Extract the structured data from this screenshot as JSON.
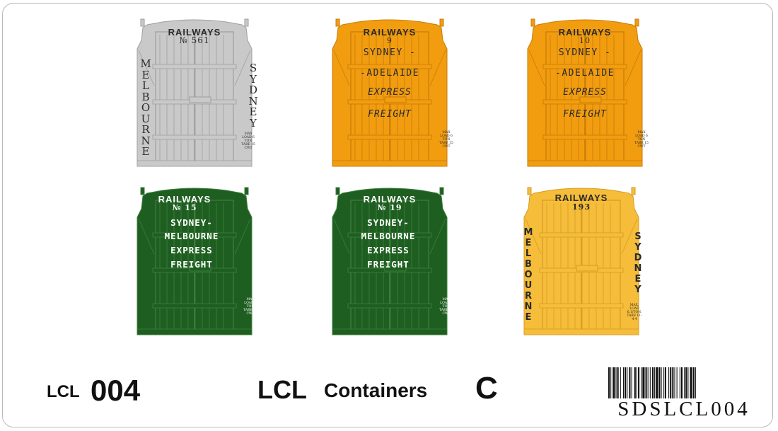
{
  "sheet": {
    "code_prefix": "LCL",
    "code_number": "004",
    "title_lcl": "LCL",
    "title_word": "Containers",
    "title_letter": "C",
    "barcode_text": "SDSLCL004"
  },
  "containers": [
    {
      "colour": "#c9c9c9",
      "line_colour": "#9e9e9e",
      "railways": "RAILWAYS",
      "number": "№ 561",
      "left_vertical": "MELBOURNE",
      "right_vertical": "SYDNEY",
      "small_print": "MAX LOAD 6 TON TARE 15 CWT"
    },
    {
      "colour": "#f29d10",
      "line_colour": "#c67b07",
      "railways": "RAILWAYS",
      "number": "9",
      "lines": [
        "SYDNEY  -",
        "-ADELAIDE",
        "EXPRESS",
        "FREIGHT"
      ],
      "small_print": "MAX LOAD 6 TON TARE 15 CWT"
    },
    {
      "colour": "#f29d10",
      "line_colour": "#c67b07",
      "railways": "RAILWAYS",
      "number": "10",
      "lines": [
        "SYDNEY  -",
        "-ADELAIDE",
        "EXPRESS",
        "FREIGHT"
      ],
      "small_print": "MAX LOAD 6 TON TARE 15 CWT"
    },
    {
      "colour": "#1e5f21",
      "line_colour": "#3f7f3f",
      "railways": "RAILWAYS",
      "number": "№ 15",
      "lines": [
        "SYDNEY-",
        "MELBOURNE",
        "EXPRESS",
        "FREIGHT"
      ],
      "small_print": "MAX LOAD 6 TON TARE 15 CWT"
    },
    {
      "colour": "#1e5f21",
      "line_colour": "#3f7f3f",
      "railways": "RAILWAYS",
      "number": "№ 19",
      "lines": [
        "SYDNEY-",
        "MELBOURNE",
        "EXPRESS",
        "FREIGHT"
      ],
      "small_print": "MAX LOAD 6 TON TARE 15 CWT"
    },
    {
      "colour": "#f5bd3a",
      "line_colour": "#d69b22",
      "railways": "RAILWAYS",
      "number": "193",
      "left_vertical": "MELBOURNE",
      "right_vertical": "SYDNEY",
      "small_print": "MAX. LOAD 6.1/TON. TARE 11-4-4"
    }
  ]
}
